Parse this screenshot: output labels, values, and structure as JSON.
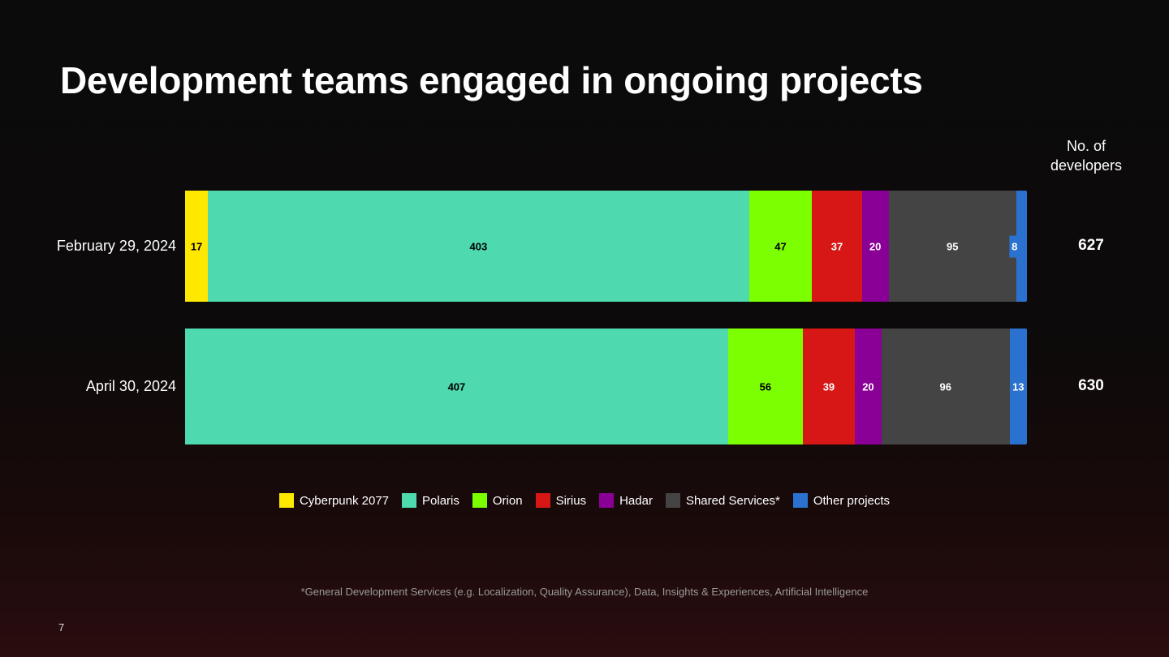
{
  "title": "Development teams engaged in ongoing projects",
  "column_header": [
    "No. of",
    "developers"
  ],
  "footnote": "*General Development Services (e.g. Localization, Quality Assurance), Data, Insights & Experiences, Artificial Intelligence",
  "page_number": "7",
  "chart_data": {
    "type": "bar",
    "orientation": "horizontal-stacked-100",
    "title": "Development teams engaged in ongoing projects",
    "categories": [
      "February 29, 2024",
      "April 30, 2024"
    ],
    "totals": [
      "627",
      "630"
    ],
    "series": [
      {
        "name": "Cyberpunk 2077",
        "color": "#ffe800",
        "label_color": "#000",
        "values": [
          17,
          0
        ]
      },
      {
        "name": "Polaris",
        "color": "#4ed9ae",
        "label_color": "#000",
        "values": [
          403,
          407
        ]
      },
      {
        "name": "Orion",
        "color": "#7cff00",
        "label_color": "#000",
        "values": [
          47,
          56
        ]
      },
      {
        "name": "Sirius",
        "color": "#d71616",
        "label_color": "#fff",
        "values": [
          37,
          39
        ]
      },
      {
        "name": "Hadar",
        "color": "#8a0096",
        "label_color": "#fff",
        "values": [
          20,
          20
        ]
      },
      {
        "name": "Shared Services*",
        "color": "#444444",
        "label_color": "#fff",
        "values": [
          95,
          96
        ]
      },
      {
        "name": "Other projects",
        "color": "#2b72d0",
        "label_color": "#fff",
        "values": [
          8,
          13
        ]
      }
    ],
    "legend": "bottom"
  }
}
